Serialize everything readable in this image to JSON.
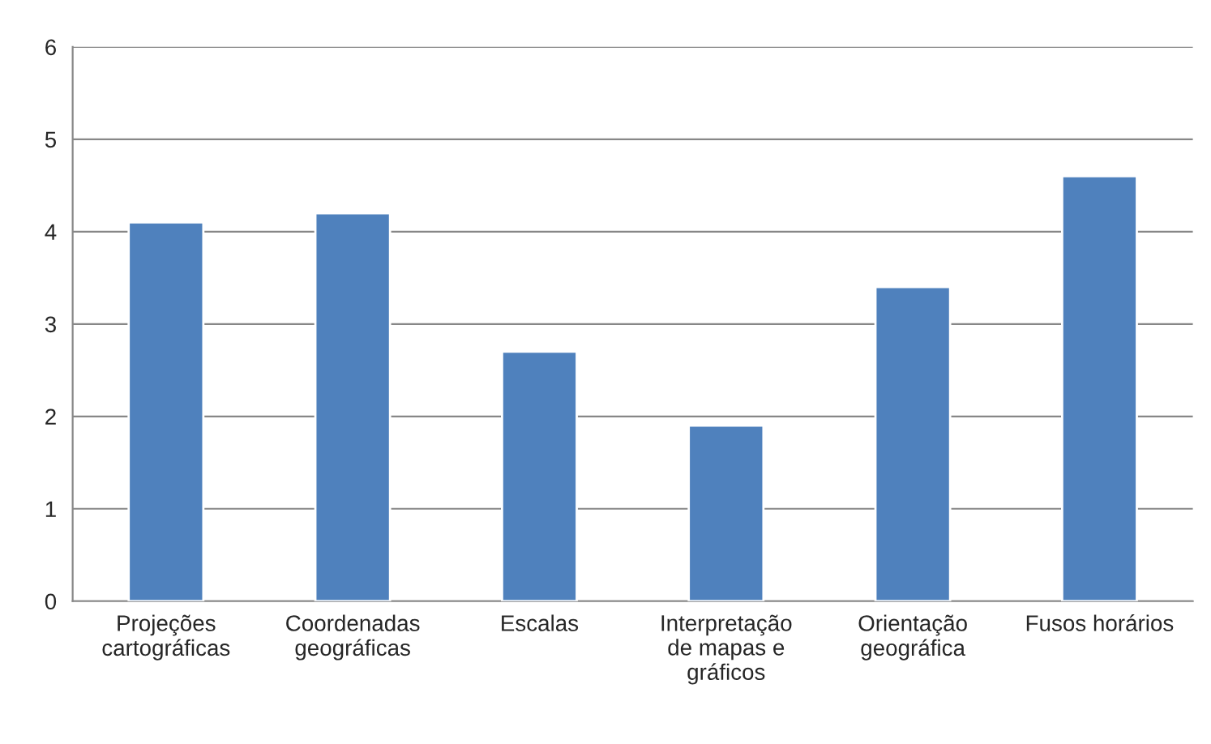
{
  "chart_data": {
    "type": "bar",
    "categories": [
      "Projeções\ncartográficas",
      "Coordenadas\ngeográficas",
      "Escalas",
      "Interpretação\nde mapas e\ngráficos",
      "Orientação\ngeográfica",
      "Fusos horários"
    ],
    "values": [
      4.1,
      4.2,
      2.7,
      1.9,
      3.4,
      4.6
    ],
    "color": "#4f81bd",
    "ylim": [
      0,
      6
    ],
    "yticks": [
      0,
      1,
      2,
      3,
      4,
      5,
      6
    ],
    "grid": "y"
  }
}
